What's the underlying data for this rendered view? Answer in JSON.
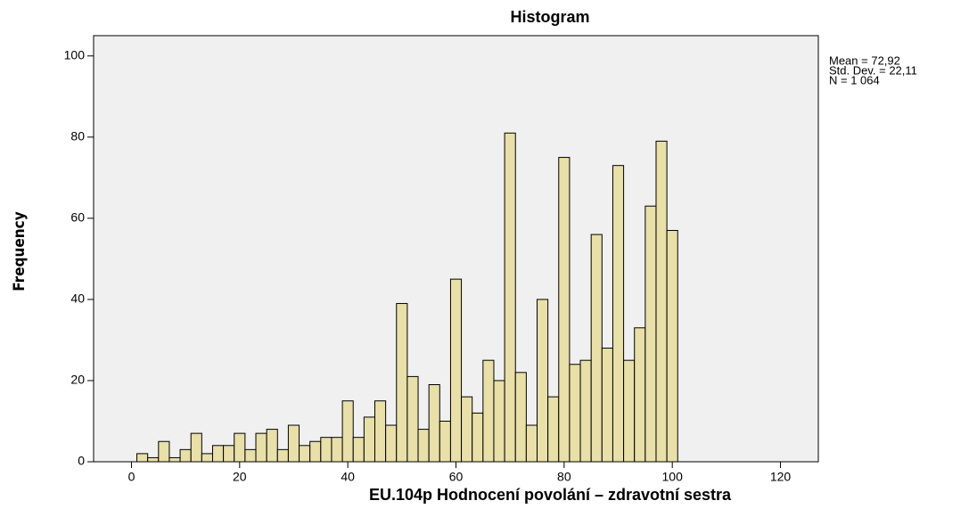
{
  "chart_data": {
    "type": "histogram",
    "title": "Histogram",
    "x_label": "EU.104p Hodnocení povolání – zdravotní sestra",
    "y_label": "Frequency",
    "annotations": [
      "Mean = 72,92",
      "Std. Dev. = 22,11",
      "N = 1 064"
    ],
    "bins": [
      1,
      3,
      5,
      7,
      9,
      11,
      13,
      15,
      17,
      19,
      21,
      23,
      25,
      27,
      29,
      31,
      33,
      35,
      37,
      39,
      41,
      43,
      45,
      47,
      49,
      51,
      53,
      55,
      57,
      59,
      61,
      63,
      65,
      67,
      69,
      71,
      73,
      75,
      77,
      79,
      81,
      83,
      85,
      87,
      89,
      91,
      93,
      95,
      97,
      99,
      101
    ],
    "values": [
      2,
      1,
      5,
      1,
      3,
      7,
      2,
      4,
      4,
      7,
      3,
      7,
      8,
      3,
      9,
      4,
      5,
      6,
      6,
      15,
      6,
      11,
      15,
      9,
      39,
      21,
      8,
      19,
      10,
      45,
      16,
      12,
      25,
      20,
      81,
      22,
      9,
      40,
      16,
      75,
      24,
      25,
      56,
      28,
      73,
      25,
      33,
      63,
      79,
      57
    ],
    "color": "#e8dfa9",
    "xlim": [
      -7,
      127
    ],
    "xticks": [
      0,
      20,
      40,
      60,
      80,
      100,
      120
    ],
    "ylim": [
      0,
      105
    ],
    "yticks": [
      0,
      20,
      40,
      60,
      80,
      100
    ]
  }
}
